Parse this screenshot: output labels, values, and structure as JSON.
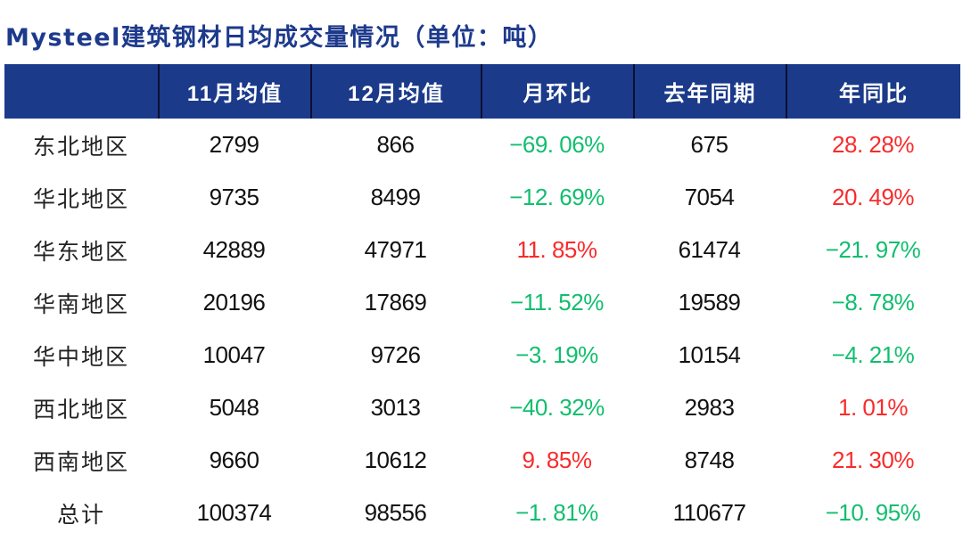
{
  "title": "Mysteel建筑钢材日均成交量情况（单位：吨）",
  "colors": {
    "title_blue": "#1d3a8c",
    "header_background": "#1b3a8a",
    "header_text": "#ffffff",
    "decline_green": "#10be6e",
    "gain_red": "#f92b2b",
    "number_text": "#111111"
  },
  "chart_data": {
    "type": "table",
    "title": "Mysteel建筑钢材日均成交量情况（单位：吨）",
    "columns": [
      "",
      "11月均值",
      "12月均值",
      "月环比",
      "去年同期",
      "年同比"
    ],
    "rows": [
      {
        "region": "东北地区",
        "nov_avg": "2799",
        "dec_avg": "866",
        "mom": "−69. 06%",
        "mom_color": "green",
        "last_year": "675",
        "yoy": "28. 28%",
        "yoy_color": "red"
      },
      {
        "region": "华北地区",
        "nov_avg": "9735",
        "dec_avg": "8499",
        "mom": "−12. 69%",
        "mom_color": "green",
        "last_year": "7054",
        "yoy": "20. 49%",
        "yoy_color": "red"
      },
      {
        "region": "华东地区",
        "nov_avg": "42889",
        "dec_avg": "47971",
        "mom": "11. 85%",
        "mom_color": "red",
        "last_year": "61474",
        "yoy": "−21. 97%",
        "yoy_color": "green"
      },
      {
        "region": "华南地区",
        "nov_avg": "20196",
        "dec_avg": "17869",
        "mom": "−11. 52%",
        "mom_color": "green",
        "last_year": "19589",
        "yoy": "−8. 78%",
        "yoy_color": "green"
      },
      {
        "region": "华中地区",
        "nov_avg": "10047",
        "dec_avg": "9726",
        "mom": "−3. 19%",
        "mom_color": "green",
        "last_year": "10154",
        "yoy": "−4. 21%",
        "yoy_color": "green"
      },
      {
        "region": "西北地区",
        "nov_avg": "5048",
        "dec_avg": "3013",
        "mom": "−40. 32%",
        "mom_color": "green",
        "last_year": "2983",
        "yoy": "1. 01%",
        "yoy_color": "red"
      },
      {
        "region": "西南地区",
        "nov_avg": "9660",
        "dec_avg": "10612",
        "mom": "9. 85%",
        "mom_color": "red",
        "last_year": "8748",
        "yoy": "21. 30%",
        "yoy_color": "red"
      },
      {
        "region": "总计",
        "nov_avg": "100374",
        "dec_avg": "98556",
        "mom": "−1. 81%",
        "mom_color": "green",
        "last_year": "110677",
        "yoy": "−10. 95%",
        "yoy_color": "green"
      }
    ]
  }
}
